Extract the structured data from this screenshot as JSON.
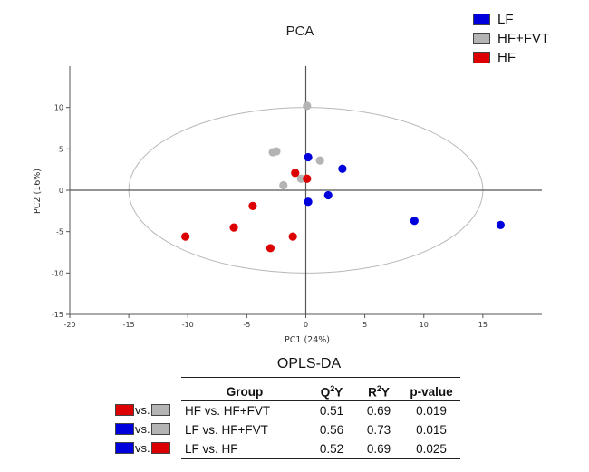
{
  "chart_data": {
    "type": "scatter",
    "title": "PCA",
    "xlabel": "PC1 (24%)",
    "ylabel": "PC2 (16%)",
    "xlim": [
      -20,
      20
    ],
    "ylim": [
      -15,
      15
    ],
    "xticks": [
      -20,
      -15,
      -10,
      -5,
      0,
      5,
      10,
      15
    ],
    "yticks": [
      10,
      5,
      0,
      -5,
      -10,
      -15
    ],
    "grid": false,
    "legend_position": "top-right",
    "confidence_ellipse": {
      "center": [
        0,
        0
      ],
      "semi_axis_x": 15,
      "semi_axis_y": 10
    },
    "series": [
      {
        "name": "LF",
        "color": "#0000dd",
        "x": [
          0.2,
          3.1,
          1.9,
          0.2,
          9.2,
          16.5
        ],
        "y": [
          4.0,
          2.6,
          -0.6,
          -1.4,
          -3.7,
          -4.2
        ]
      },
      {
        "name": "HF+FVT",
        "color": "#b4b4b4",
        "x": [
          0.1,
          -2.8,
          -2.5,
          1.2,
          -1.9,
          -0.4
        ],
        "y": [
          10.2,
          4.6,
          4.7,
          3.6,
          0.6,
          1.4
        ]
      },
      {
        "name": "HF",
        "color": "#dd0000",
        "x": [
          -0.9,
          0.1,
          -4.5,
          -6.1,
          -10.2,
          -3.0,
          -1.1
        ],
        "y": [
          2.1,
          1.4,
          -1.9,
          -4.5,
          -5.6,
          -7.0,
          -5.6
        ]
      }
    ]
  },
  "opls": {
    "title": "OPLS-DA",
    "headers": {
      "group": "Group",
      "q_main": "Q",
      "q_sup": "2",
      "q_tail": "Y",
      "r_main": "R",
      "r_sup": "2",
      "r_tail": "Y",
      "p": "p-value"
    },
    "rows": [
      {
        "group": "HF vs. HF+FVT",
        "q2y": "0.51",
        "r2y": "0.69",
        "p": "0.019",
        "key_left": "#dd0000",
        "key_right": "#b4b4b4"
      },
      {
        "group": "LF vs. HF+FVT",
        "q2y": "0.56",
        "r2y": "0.73",
        "p": "0.015",
        "key_left": "#0000dd",
        "key_right": "#b4b4b4"
      },
      {
        "group": "LF vs. HF",
        "q2y": "0.52",
        "r2y": "0.69",
        "p": "0.025",
        "key_left": "#0000dd",
        "key_right": "#dd0000"
      }
    ],
    "vs_label": "vs."
  }
}
